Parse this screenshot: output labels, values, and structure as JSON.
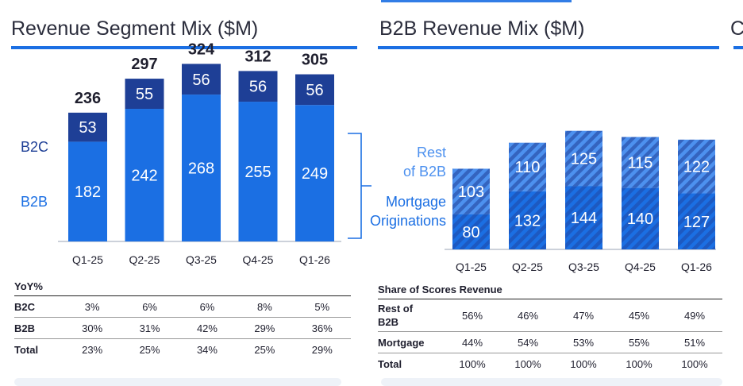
{
  "colors": {
    "dark": "#1e3f96",
    "bright": "#1b6fe3",
    "hatch": "#4d91ef",
    "accent": "#1b6fe3"
  },
  "next_panel_stub": "C",
  "chart_data": [
    {
      "type": "bar",
      "title": "Revenue Segment Mix ($M)",
      "categories": [
        "Q1-25",
        "Q2-25",
        "Q3-25",
        "Q4-25",
        "Q1-26"
      ],
      "series": [
        {
          "name": "B2B",
          "values": [
            182,
            242,
            268,
            255,
            249
          ]
        },
        {
          "name": "B2C",
          "values": [
            53,
            55,
            56,
            56,
            56
          ]
        }
      ],
      "totals": [
        "236",
        "297",
        "324",
        "312",
        "305"
      ],
      "ylim": [
        0,
        330
      ],
      "legend": [
        "B2C",
        "B2B"
      ]
    },
    {
      "type": "bar",
      "title": "B2B Revenue Mix ($M)",
      "categories": [
        "Q1-25",
        "Q2-25",
        "Q3-25",
        "Q4-25",
        "Q1-26"
      ],
      "series": [
        {
          "name": "Mortgage Originations",
          "values": [
            80,
            132,
            144,
            140,
            127
          ]
        },
        {
          "name": "Rest of B2B",
          "values": [
            103,
            110,
            125,
            115,
            122
          ]
        }
      ],
      "ylim": [
        0,
        270
      ],
      "legend_lines": {
        "rest": [
          "Rest",
          "of B2B"
        ],
        "mortgage": [
          "Mortgage",
          "Originations"
        ]
      }
    }
  ],
  "yoy_table": {
    "header": "YoY%",
    "rows": [
      {
        "label": "B2C",
        "values": [
          "3%",
          "6%",
          "6%",
          "8%",
          "5%"
        ]
      },
      {
        "label": "B2B",
        "values": [
          "30%",
          "31%",
          "42%",
          "29%",
          "36%"
        ]
      },
      {
        "label": "Total",
        "values": [
          "23%",
          "25%",
          "34%",
          "25%",
          "29%"
        ]
      }
    ]
  },
  "share_table": {
    "header": "Share of Scores Revenue",
    "rows": [
      {
        "label_lines": [
          "Rest of",
          "B2B"
        ],
        "values": [
          "56%",
          "46%",
          "47%",
          "45%",
          "49%"
        ]
      },
      {
        "label_lines": [
          "Mortgage"
        ],
        "values": [
          "44%",
          "54%",
          "53%",
          "55%",
          "51%"
        ]
      },
      {
        "label_lines": [
          "Total"
        ],
        "values": [
          "100%",
          "100%",
          "100%",
          "100%",
          "100%"
        ]
      }
    ]
  }
}
